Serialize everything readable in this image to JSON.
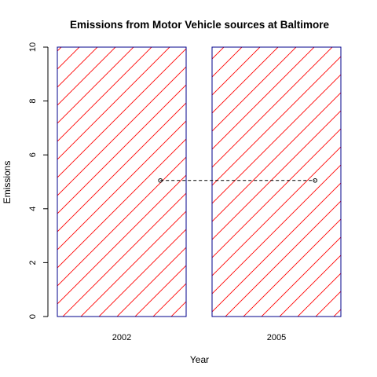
{
  "chart_data": {
    "type": "bar",
    "title": "Emissions from Motor Vehicle sources at Baltimore",
    "xlabel": "Year",
    "ylabel": "Emissions",
    "categories": [
      "2002",
      "2005"
    ],
    "values": [
      10,
      10
    ],
    "ylim": [
      0,
      10
    ],
    "yticks": [
      0,
      2,
      4,
      6,
      8,
      10
    ],
    "fill": "hatched diagonal lines",
    "colors": {
      "hatch": "#ff0000",
      "border": "#00008b",
      "line": "#000000"
    },
    "overlay_line": {
      "style": "dashed",
      "points": [
        {
          "x": "2002",
          "y": 5.05
        },
        {
          "x": "2005",
          "y": 5.05
        }
      ]
    },
    "grid": false,
    "legend": "none"
  }
}
